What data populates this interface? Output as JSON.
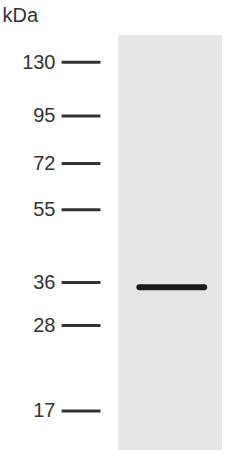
{
  "chart_data": {
    "type": "western_blot",
    "y_label": "kDa",
    "log": "y",
    "ylim": [
      13.5,
      152
    ],
    "yticks": [
      130,
      95,
      72,
      55,
      36,
      28,
      17
    ],
    "values": [
      35
    ],
    "color": "#1a1a1a"
  }
}
